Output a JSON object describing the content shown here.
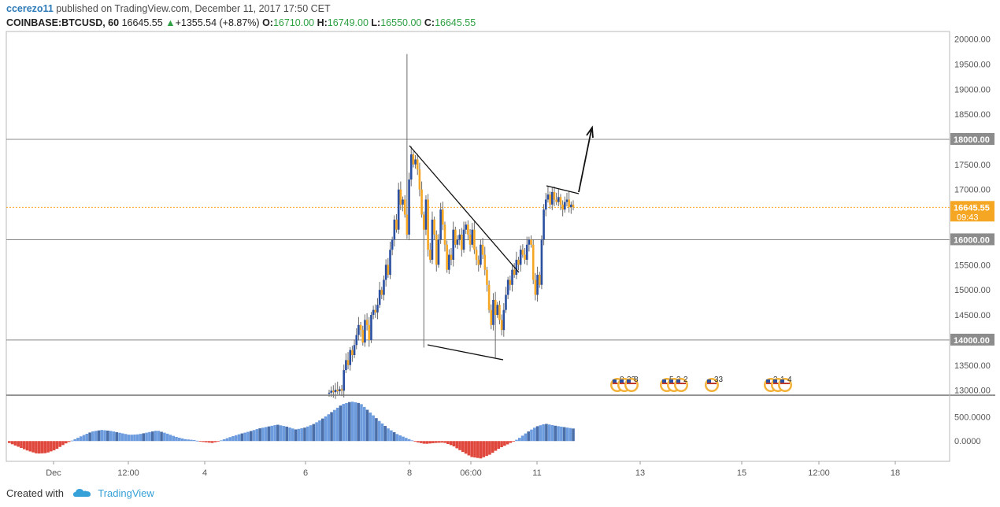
{
  "header": {
    "author": "ccerezo11",
    "published_text": "published on TradingView.com, December 11, 2017 17:50 CET",
    "symbol": "COINBASE:BTCUSD, 60",
    "last": "16645.55",
    "change": "+1355.54 (+8.87%)",
    "open_label": "O:",
    "open": "16710.00",
    "high_label": "H:",
    "high": "16749.00",
    "low_label": "L:",
    "low": "16550.00",
    "close_label": "C:",
    "close": "16645.55"
  },
  "footer": {
    "created_with": "Created with",
    "brand": "TradingView"
  },
  "colors": {
    "bull": "#2a4fa0",
    "bear": "#f5a623",
    "wick": "#6b6b6b",
    "hist_pos": "#6c9bde",
    "hist_pos_dark": "#4a6fa8",
    "hist_neg": "#e0473d",
    "price_line": "#f5a623",
    "level_line": "#888888",
    "axis_label_bg": "#8c8c8c"
  },
  "chart_data": {
    "type": "candlestick",
    "symbol": "COINBASE:BTCUSD",
    "interval": "60",
    "y_ticks": [
      "20000.00",
      "19500.00",
      "19000.00",
      "18500.00",
      "18000.00",
      "17500.00",
      "17000.00",
      "16500.00",
      "16000.00",
      "15500.00",
      "15000.00",
      "14500.00",
      "14000.00",
      "13500.00",
      "13000.00"
    ],
    "ylim": [
      12900,
      20150
    ],
    "x_ticks": [
      "Dec",
      "12:00",
      "4",
      "6",
      "8",
      "06:00",
      "11",
      "13",
      "15",
      "12:00",
      "18"
    ],
    "horizontal_levels": [
      {
        "price": 18000,
        "label": "18000.00"
      },
      {
        "price": 16000,
        "label": "16000.00"
      },
      {
        "price": 14000,
        "label": "14000.00"
      }
    ],
    "current_price": {
      "price": 16645.55,
      "label": "16645.55",
      "countdown": "09:43"
    },
    "candle_closes_hourly": [
      12950,
      12990,
      12960,
      13010,
      12980,
      13020,
      12990,
      13400,
      13600,
      13500,
      13800,
      13700,
      13900,
      14100,
      14300,
      14200,
      13950,
      14400,
      14300,
      14000,
      14500,
      14600,
      14550,
      14700,
      15000,
      14900,
      15200,
      15500,
      15300,
      15800,
      16000,
      16400,
      16200,
      17000,
      16700,
      16800,
      16500,
      16100,
      17200,
      17700,
      17500,
      17600,
      17400,
      17000,
      16500,
      16200,
      16800,
      15800,
      15600,
      16400,
      16100,
      15500,
      16000,
      16600,
      16300,
      15900,
      15400,
      15700,
      15600,
      16200,
      15900,
      16000,
      16100,
      15800,
      16200,
      16300,
      16100,
      15900,
      16200,
      15800,
      15600,
      15500,
      15900,
      15700,
      15400,
      15100,
      14600,
      14300,
      14800,
      14500,
      14700,
      14400,
      14200,
      14600,
      14900,
      15200,
      15100,
      15400,
      15300,
      15600,
      15500,
      15800,
      15700,
      15600,
      15900,
      16000,
      15900,
      15200,
      14900,
      15300,
      15100,
      16000,
      16600,
      16800,
      16900,
      16700,
      16950,
      16800,
      16750,
      16850,
      16700,
      16600,
      16750,
      16800,
      16650,
      16700,
      16645.55
    ],
    "drawings": [
      {
        "type": "trendline",
        "from": {
          "x": "Dec 7 ~18:00",
          "y": 17800
        },
        "to": {
          "x": "Dec 10 ~02:00",
          "y": 15200
        }
      },
      {
        "type": "trendline",
        "from": {
          "x": "Dec 8 ~06:00",
          "y": 13850
        },
        "to": {
          "x": "Dec 10 ~00:00",
          "y": 13550
        }
      },
      {
        "type": "trendline",
        "from": {
          "x": "Dec 11 ~05:00",
          "y": 17000
        },
        "to": {
          "x": "Dec 11 ~17:00",
          "y": 16800
        }
      },
      {
        "type": "arrow",
        "from": {
          "x": "Dec 11 ~17:00",
          "y": 16850
        },
        "to": {
          "x": "Dec 11 ~22:00",
          "y": 18400
        }
      }
    ],
    "events": [
      {
        "x": "Dec 12",
        "labels": [
          "8",
          "22",
          "8"
        ]
      },
      {
        "x": "Dec 13",
        "labels": [
          "5",
          "2",
          "2"
        ]
      },
      {
        "x": "Dec 14",
        "labels": [
          "33"
        ]
      },
      {
        "x": "Dec 15",
        "labels": [
          "3",
          "1",
          "4"
        ]
      }
    ],
    "indicator": {
      "type": "histogram",
      "y_ticks": [
        "500.0000",
        "0.0000"
      ],
      "ylim": [
        -420,
        950
      ],
      "values_approx": [
        -40,
        -120,
        -200,
        -260,
        -250,
        -180,
        -60,
        30,
        120,
        200,
        230,
        210,
        170,
        130,
        140,
        180,
        220,
        160,
        90,
        40,
        20,
        -20,
        -40,
        20,
        90,
        150,
        200,
        260,
        300,
        340,
        300,
        240,
        280,
        360,
        480,
        620,
        760,
        820,
        780,
        600,
        420,
        260,
        140,
        60,
        -20,
        -60,
        -40,
        -30,
        -100,
        -220,
        -330,
        -360,
        -280,
        -150,
        -60,
        40,
        180,
        300,
        360,
        320,
        290,
        260
      ]
    }
  }
}
